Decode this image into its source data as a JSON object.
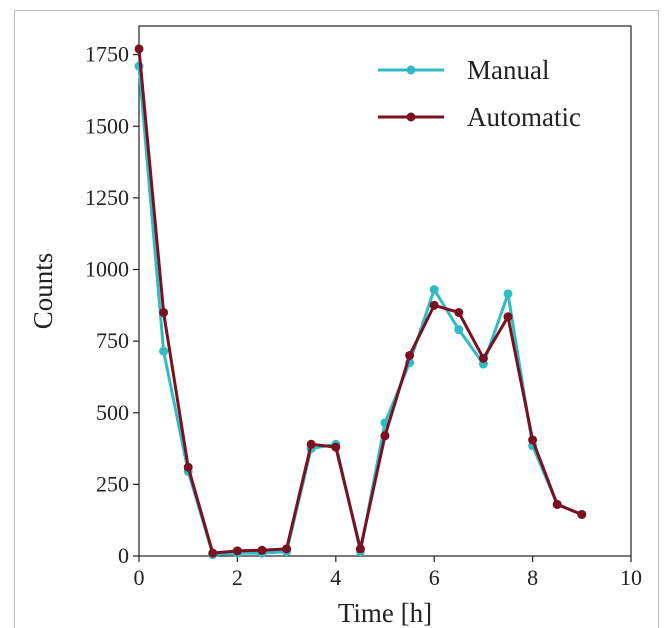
{
  "chart_data": {
    "type": "line",
    "title": "",
    "xlabel": "Time [h]",
    "ylabel": "Counts",
    "xlim": [
      0,
      10
    ],
    "ylim": [
      0,
      1850
    ],
    "xticks": [
      0,
      2,
      4,
      6,
      8,
      10
    ],
    "yticks": [
      0,
      250,
      500,
      750,
      1000,
      1250,
      1500,
      1750
    ],
    "grid": false,
    "legend_position": "top-right",
    "x": [
      0,
      0.5,
      1,
      1.5,
      2,
      2.5,
      3,
      3.5,
      4,
      4.5,
      5,
      5.5,
      6,
      6.5,
      7,
      7.5,
      8,
      8.5,
      9
    ],
    "series": [
      {
        "name": "Manual",
        "color": "#2fbcc4",
        "values": [
          1710,
          715,
          295,
          5,
          10,
          10,
          15,
          375,
          390,
          15,
          465,
          675,
          930,
          790,
          670,
          915,
          385,
          180,
          145
        ]
      },
      {
        "name": "Automatic",
        "color": "#7a1020",
        "values": [
          1770,
          850,
          310,
          10,
          18,
          20,
          25,
          390,
          380,
          25,
          420,
          700,
          875,
          850,
          690,
          835,
          405,
          180,
          145
        ]
      }
    ]
  }
}
